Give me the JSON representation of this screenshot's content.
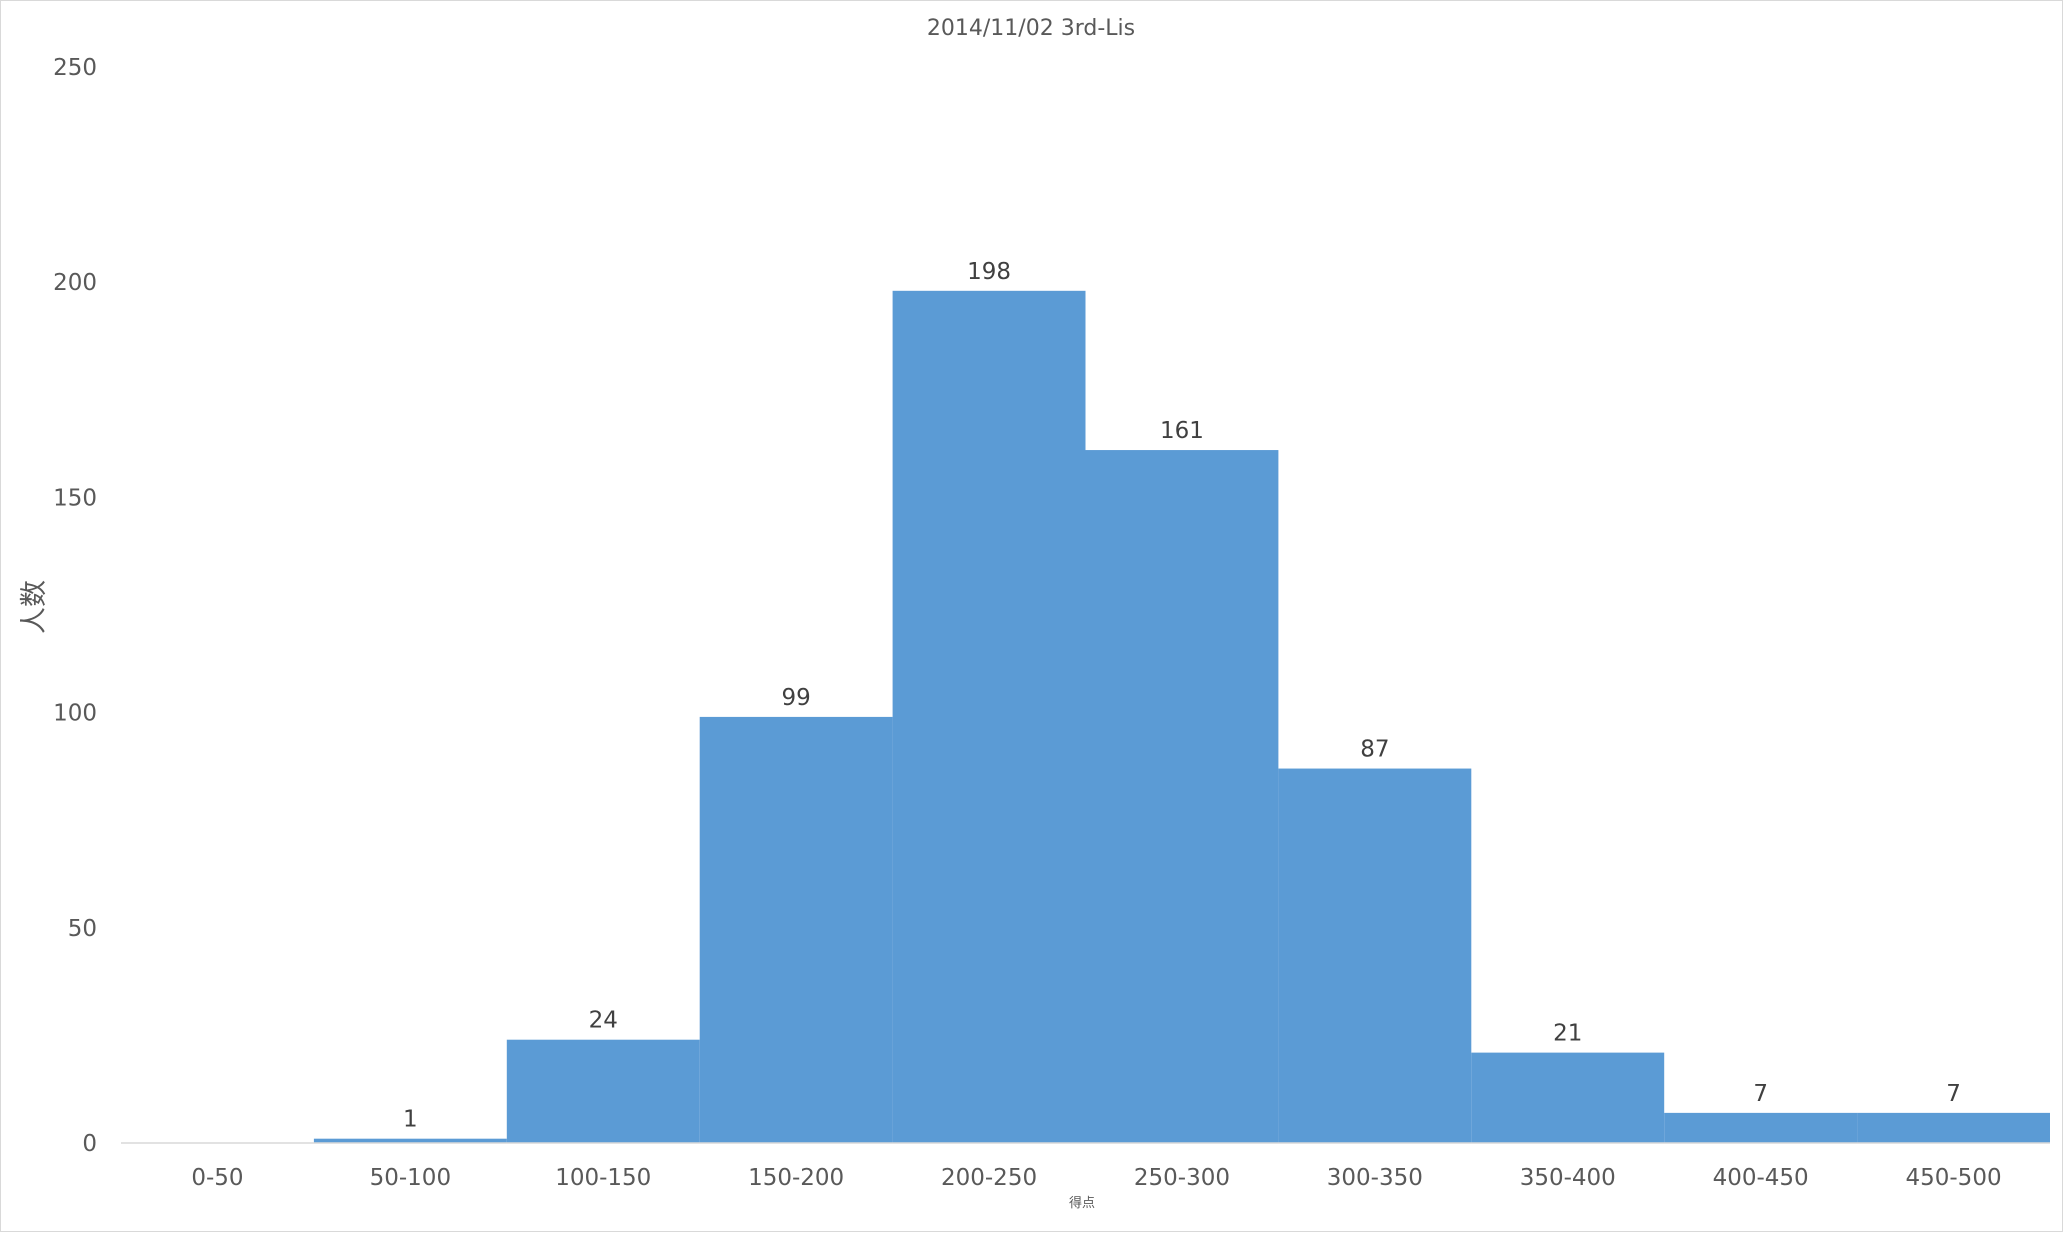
{
  "chart_data": {
    "type": "bar",
    "title": "2014/11/02 3rd-Lis",
    "xlabel": "得点",
    "ylabel": "人数",
    "categories": [
      "0-50",
      "50-100",
      "100-150",
      "150-200",
      "200-250",
      "250-300",
      "300-350",
      "350-400",
      "400-450",
      "450-500"
    ],
    "series": [
      {
        "values": [
          0,
          1,
          24,
          99,
          198,
          161,
          87,
          21,
          7,
          7
        ],
        "color": "#5b9bd5"
      }
    ],
    "data_labels": [
      "",
      "1",
      "24",
      "99",
      "198",
      "161",
      "87",
      "21",
      "7",
      "7"
    ],
    "y_ticks": [
      "0",
      "50",
      "100",
      "150",
      "200",
      "250"
    ],
    "ylim": [
      0,
      250
    ],
    "grid": false,
    "legend": "none",
    "bar_gap": "none"
  }
}
